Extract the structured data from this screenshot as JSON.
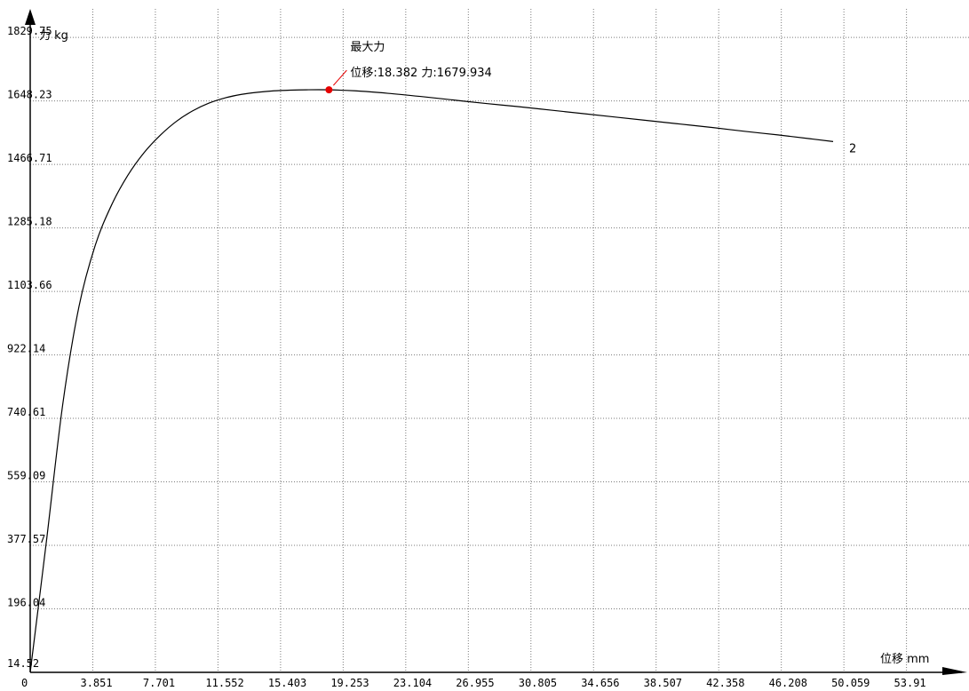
{
  "chart_data": {
    "type": "line",
    "ylabel": "力 kg",
    "xlabel": "位移 mm",
    "xlim": [
      0,
      57.76
    ],
    "ylim": [
      14.52,
      1911.33
    ],
    "x_ticks": [
      "0",
      "3.851",
      "7.701",
      "11.552",
      "15.403",
      "19.253",
      "23.104",
      "26.955",
      "30.805",
      "34.656",
      "38.507",
      "42.358",
      "46.208",
      "50.059",
      "53.91"
    ],
    "y_ticks": [
      "14.52",
      "196.04",
      "377.57",
      "559.09",
      "740.61",
      "922.14",
      "1103.66",
      "1285.18",
      "1466.71",
      "1648.23",
      "1829.75"
    ],
    "grid": true,
    "series": [
      {
        "name": "2",
        "color": "#000000",
        "points": [
          [
            0,
            14.52
          ],
          [
            1.0,
            390
          ],
          [
            2.0,
            780
          ],
          [
            3.0,
            1060
          ],
          [
            4.0,
            1235
          ],
          [
            5.0,
            1350
          ],
          [
            6.0,
            1435
          ],
          [
            7.0,
            1500
          ],
          [
            8.0,
            1550
          ],
          [
            9.0,
            1590
          ],
          [
            10.0,
            1620
          ],
          [
            11.0,
            1642
          ],
          [
            12.0,
            1657
          ],
          [
            13.0,
            1667
          ],
          [
            14.0,
            1673
          ],
          [
            15.0,
            1677
          ],
          [
            16.0,
            1679
          ],
          [
            17.0,
            1680
          ],
          [
            18.382,
            1679.934
          ],
          [
            20.0,
            1677
          ],
          [
            22.0,
            1670
          ],
          [
            24.0,
            1661
          ],
          [
            26.0,
            1651
          ],
          [
            28.0,
            1641
          ],
          [
            30.0,
            1632
          ],
          [
            32.0,
            1622
          ],
          [
            34.0,
            1612
          ],
          [
            36.0,
            1602
          ],
          [
            38.0,
            1592
          ],
          [
            40.0,
            1582
          ],
          [
            42.0,
            1572
          ],
          [
            44.0,
            1561
          ],
          [
            46.0,
            1551
          ],
          [
            48.0,
            1540
          ],
          [
            49.4,
            1532
          ]
        ]
      }
    ],
    "annotations": [
      {
        "label": "最大力",
        "detail": "位移:18.382 力:1679.934",
        "x": 18.382,
        "y": 1679.934,
        "marker_color": "#e60000"
      }
    ]
  }
}
